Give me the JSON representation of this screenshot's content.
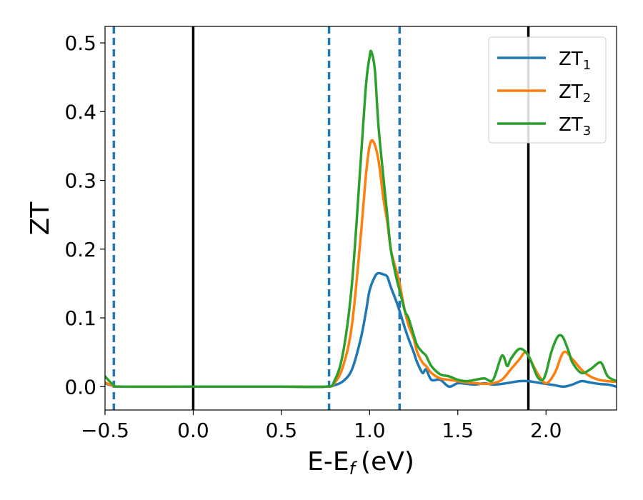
{
  "chart_data": {
    "type": "line",
    "xlabel": "E-E",
    "xlabel_sub": "f",
    "xlabel_unit": "(eV)",
    "ylabel": "ZT",
    "xlim": [
      -0.5,
      2.4
    ],
    "ylim": [
      -0.034,
      0.524
    ],
    "xticks": [
      -0.5,
      0.0,
      0.5,
      1.0,
      1.5,
      2.0
    ],
    "xtick_labels": [
      "−0.5",
      "0.0",
      "0.5",
      "1.0",
      "1.5",
      "2.0"
    ],
    "yticks": [
      0.0,
      0.1,
      0.2,
      0.3,
      0.4,
      0.5
    ],
    "ytick_labels": [
      "0.0",
      "0.1",
      "0.2",
      "0.3",
      "0.4",
      "0.5"
    ],
    "grid": false,
    "legend_position": "top-right",
    "vlines_solid": [
      0.0,
      1.9
    ],
    "vlines_dashed": [
      -0.45,
      0.77,
      1.17
    ],
    "vline_solid_color": "#000000",
    "vline_dashed_color": "#1f77b4",
    "series": [
      {
        "name": "ZT",
        "sub": "1",
        "color": "#1f77b4",
        "x": [
          -0.5,
          -0.45,
          -0.4,
          0.0,
          0.5,
          0.75,
          0.8,
          0.85,
          0.9,
          0.95,
          0.98,
          1.0,
          1.03,
          1.05,
          1.08,
          1.1,
          1.12,
          1.15,
          1.17,
          1.2,
          1.22,
          1.25,
          1.27,
          1.3,
          1.32,
          1.35,
          1.4,
          1.45,
          1.5,
          1.55,
          1.6,
          1.65,
          1.7,
          1.75,
          1.8,
          1.85,
          1.9,
          1.95,
          2.0,
          2.05,
          2.1,
          2.15,
          2.2,
          2.25,
          2.3,
          2.35,
          2.4
        ],
        "y": [
          0.005,
          0.001,
          0.0,
          0.0,
          0.0,
          0.0,
          0.002,
          0.008,
          0.025,
          0.07,
          0.11,
          0.14,
          0.16,
          0.165,
          0.163,
          0.16,
          0.145,
          0.125,
          0.11,
          0.085,
          0.07,
          0.05,
          0.035,
          0.02,
          0.025,
          0.01,
          0.01,
          0.0,
          0.005,
          0.004,
          0.003,
          0.005,
          0.003,
          0.004,
          0.006,
          0.008,
          0.008,
          0.006,
          0.004,
          0.002,
          0.0,
          0.003,
          0.008,
          0.006,
          0.004,
          0.003,
          0.0
        ]
      },
      {
        "name": "ZT",
        "sub": "2",
        "color": "#ff7f0e",
        "x": [
          -0.5,
          -0.45,
          -0.4,
          0.0,
          0.5,
          0.75,
          0.8,
          0.85,
          0.9,
          0.95,
          0.98,
          1.0,
          1.02,
          1.05,
          1.08,
          1.1,
          1.12,
          1.15,
          1.17,
          1.2,
          1.22,
          1.25,
          1.27,
          1.3,
          1.32,
          1.35,
          1.4,
          1.45,
          1.5,
          1.55,
          1.6,
          1.65,
          1.7,
          1.75,
          1.8,
          1.85,
          1.88,
          1.9,
          1.95,
          2.0,
          2.05,
          2.1,
          2.15,
          2.2,
          2.25,
          2.3,
          2.35,
          2.4
        ],
        "y": [
          0.006,
          0.001,
          0.0,
          0.0,
          0.0,
          0.0,
          0.005,
          0.03,
          0.09,
          0.22,
          0.31,
          0.35,
          0.357,
          0.33,
          0.27,
          0.24,
          0.2,
          0.17,
          0.15,
          0.11,
          0.09,
          0.07,
          0.05,
          0.035,
          0.03,
          0.02,
          0.012,
          0.01,
          0.008,
          0.006,
          0.005,
          0.004,
          0.005,
          0.01,
          0.025,
          0.04,
          0.05,
          0.045,
          0.02,
          0.005,
          0.02,
          0.05,
          0.04,
          0.025,
          0.015,
          0.01,
          0.008,
          0.007
        ]
      },
      {
        "name": "ZT",
        "sub": "3",
        "color": "#2ca02c",
        "x": [
          -0.5,
          -0.45,
          -0.4,
          0.0,
          0.5,
          0.75,
          0.8,
          0.85,
          0.9,
          0.95,
          0.98,
          1.0,
          1.01,
          1.03,
          1.05,
          1.08,
          1.1,
          1.12,
          1.15,
          1.17,
          1.2,
          1.22,
          1.25,
          1.27,
          1.3,
          1.32,
          1.35,
          1.4,
          1.45,
          1.5,
          1.55,
          1.6,
          1.65,
          1.7,
          1.75,
          1.78,
          1.8,
          1.85,
          1.9,
          1.95,
          1.98,
          2.0,
          2.03,
          2.06,
          2.08,
          2.1,
          2.13,
          2.15,
          2.2,
          2.25,
          2.3,
          2.32,
          2.35,
          2.4
        ],
        "y": [
          0.015,
          0.002,
          0.0,
          0.0,
          0.0,
          0.0,
          0.008,
          0.05,
          0.15,
          0.33,
          0.44,
          0.48,
          0.487,
          0.46,
          0.38,
          0.3,
          0.25,
          0.2,
          0.16,
          0.14,
          0.11,
          0.1,
          0.075,
          0.06,
          0.05,
          0.045,
          0.03,
          0.018,
          0.015,
          0.01,
          0.008,
          0.01,
          0.012,
          0.01,
          0.045,
          0.03,
          0.04,
          0.055,
          0.045,
          0.015,
          0.01,
          0.02,
          0.05,
          0.07,
          0.075,
          0.07,
          0.05,
          0.035,
          0.02,
          0.025,
          0.035,
          0.032,
          0.015,
          0.008
        ]
      }
    ]
  }
}
